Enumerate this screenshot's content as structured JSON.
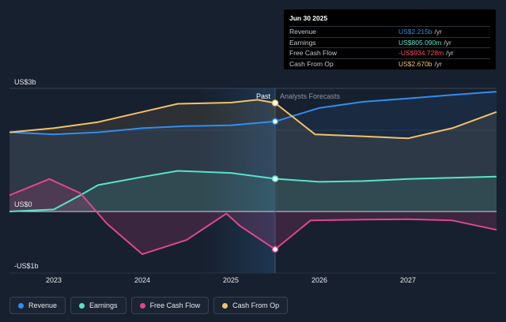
{
  "chart_data": {
    "type": "line",
    "x_ticks": [
      "2023",
      "2024",
      "2025",
      "2026",
      "2027"
    ],
    "y_ticks": [
      "US$3b",
      "US$0",
      "-US$1b"
    ],
    "ylim": [
      -1.0,
      3.0
    ],
    "zones": {
      "past_label": "Past",
      "forecast_label": "Analysts Forecasts",
      "divider_x": 2025.5
    },
    "series": [
      {
        "name": "Revenue",
        "color": "#2e8ef0",
        "x": [
          2022.5,
          2023.0,
          2023.5,
          2024.0,
          2024.5,
          2025.0,
          2025.5,
          2026.0,
          2026.5,
          2027.0,
          2027.5,
          2028.0
        ],
        "y": [
          1.95,
          1.9,
          1.95,
          2.05,
          2.1,
          2.12,
          2.215,
          2.55,
          2.7,
          2.78,
          2.87,
          2.95
        ]
      },
      {
        "name": "Earnings",
        "color": "#58e3c9",
        "x": [
          2022.5,
          2023.0,
          2023.3,
          2023.5,
          2024.0,
          2024.4,
          2025.0,
          2025.5,
          2026.0,
          2026.5,
          2027.0,
          2027.5,
          2028.0
        ],
        "y": [
          0.0,
          0.05,
          0.4,
          0.65,
          0.85,
          1.0,
          0.95,
          0.805,
          0.73,
          0.75,
          0.8,
          0.83,
          0.86
        ]
      },
      {
        "name": "Free Cash Flow",
        "color": "#e0468f",
        "x": [
          2022.5,
          2022.95,
          2023.3,
          2023.6,
          2024.0,
          2024.5,
          2024.95,
          2025.1,
          2025.5,
          2025.9,
          2026.5,
          2027.0,
          2027.5,
          2028.0
        ],
        "y": [
          0.4,
          0.8,
          0.45,
          -0.3,
          -1.05,
          -0.7,
          -0.05,
          -0.35,
          -0.93,
          -0.22,
          -0.2,
          -0.19,
          -0.22,
          -0.45
        ]
      },
      {
        "name": "Cash From Op",
        "color": "#f1c26b",
        "x": [
          2022.5,
          2023.0,
          2023.5,
          2024.0,
          2024.4,
          2025.0,
          2025.3,
          2025.5,
          2025.95,
          2026.5,
          2027.0,
          2027.5,
          2028.0
        ],
        "y": [
          1.95,
          2.05,
          2.2,
          2.45,
          2.65,
          2.68,
          2.75,
          2.67,
          1.9,
          1.85,
          1.8,
          2.05,
          2.45
        ]
      }
    ],
    "legend_placement": "bottom-left"
  },
  "tooltip": {
    "date": "Jun 30 2025",
    "rows": [
      {
        "label": "Revenue",
        "value": "US$2.215b",
        "unit": "/yr",
        "color": "#2e8ef0"
      },
      {
        "label": "Earnings",
        "value": "US$805.090m",
        "unit": "/yr",
        "color": "#58e3c9"
      },
      {
        "label": "Free Cash Flow",
        "value": "-US$934.728m",
        "unit": "/yr",
        "color": "#ff4d5e"
      },
      {
        "label": "Cash From Op",
        "value": "US$2.670b",
        "unit": "/yr",
        "color": "#f1c26b"
      }
    ]
  },
  "legend": [
    {
      "label": "Revenue",
      "color": "#2e8ef0"
    },
    {
      "label": "Earnings",
      "color": "#58e3c9"
    },
    {
      "label": "Free Cash Flow",
      "color": "#e0468f"
    },
    {
      "label": "Cash From Op",
      "color": "#f1c26b"
    }
  ]
}
